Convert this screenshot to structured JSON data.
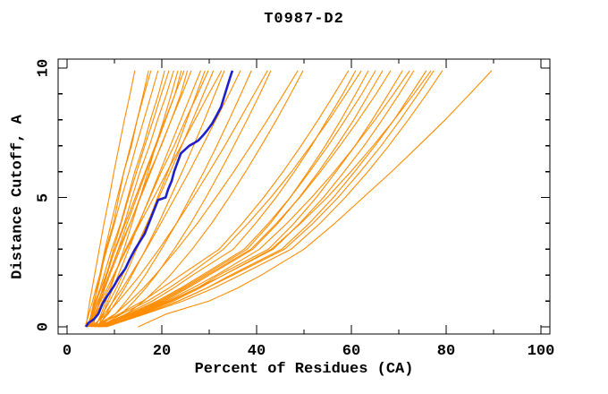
{
  "colors": {
    "background": "#ffffff",
    "frame": "#000000",
    "text": "#000000",
    "model_curves": "#ff8c00",
    "highlight_curve": "#1f1fc8"
  },
  "chart_data": {
    "type": "line",
    "title": "T0987-D2",
    "xlabel": "Percent of Residues (CA)",
    "ylabel": "Distance Cutoff, A",
    "xlim": [
      0,
      100
    ],
    "ylim": [
      0,
      10
    ],
    "x_major_ticks": [
      0,
      20,
      40,
      60,
      80,
      100
    ],
    "x_minor_ticks": [
      10,
      30,
      50,
      70,
      90
    ],
    "y_major_ticks": [
      0,
      5,
      10
    ],
    "y_minor_ticks": [
      1,
      2,
      3,
      4,
      6,
      7,
      8,
      9
    ],
    "grid": false,
    "legend": false,
    "series_note": "orange = submitted model curves, blue = highlighted model",
    "y_levels": [
      0,
      0.5,
      1,
      1.5,
      2,
      3,
      4,
      5,
      6,
      7,
      8,
      9,
      9.9
    ],
    "model_curves_x": [
      [
        4.0,
        4.4,
        4.8,
        5.3,
        5.8,
        6.8,
        7.8,
        8.9,
        9.9,
        11.0,
        12.1,
        13.3,
        14.3
      ],
      [
        4.5,
        5.1,
        5.7,
        6.5,
        7.1,
        8.2,
        9.8,
        10.9,
        12.0,
        13.6,
        14.8,
        16.1,
        17.2
      ],
      [
        5.0,
        5.4,
        5.8,
        6.3,
        6.9,
        8.0,
        9.3,
        10.6,
        12.0,
        13.4,
        14.8,
        16.3,
        17.7
      ],
      [
        3.8,
        4.6,
        5.4,
        6.1,
        6.9,
        8.4,
        10.0,
        11.5,
        13.1,
        14.6,
        16.2,
        17.8,
        19.2
      ],
      [
        4.2,
        5.2,
        6.0,
        7.0,
        7.8,
        9.4,
        11.3,
        12.8,
        14.3,
        16.1,
        17.6,
        19.3,
        20.6
      ],
      [
        5.5,
        6.1,
        6.8,
        7.5,
        8.3,
        9.8,
        11.4,
        13.0,
        14.7,
        16.4,
        18.2,
        19.9,
        21.5
      ],
      [
        4.8,
        5.6,
        6.6,
        7.6,
        8.4,
        10.1,
        12.1,
        13.7,
        15.4,
        17.4,
        19.1,
        21.0,
        22.5
      ],
      [
        6.0,
        7.2,
        8.2,
        9.2,
        10.1,
        12.0,
        13.7,
        15.4,
        17.1,
        18.7,
        20.4,
        22.0,
        23.4
      ],
      [
        4.3,
        5.3,
        6.2,
        7.2,
        8.2,
        10.2,
        12.3,
        14.4,
        16.5,
        18.6,
        20.7,
        22.8,
        24.1
      ],
      [
        5.2,
        6.0,
        7.0,
        7.9,
        8.8,
        10.8,
        12.7,
        14.7,
        16.7,
        18.8,
        20.8,
        22.8,
        24.7
      ],
      [
        5.1,
        6.0,
        7.0,
        8.0,
        9.0,
        11.2,
        13.3,
        15.5,
        17.7,
        19.8,
        22.0,
        24.0,
        25.4
      ],
      [
        4.4,
        5.5,
        6.5,
        7.8,
        8.8,
        10.9,
        13.3,
        15.4,
        17.5,
        19.9,
        22.0,
        24.3,
        26.2
      ],
      [
        6.6,
        7.6,
        8.6,
        9.7,
        10.8,
        13.0,
        15.2,
        17.4,
        19.6,
        21.8,
        24.0,
        26.2,
        28.2
      ],
      [
        6.5,
        8.3,
        9.7,
        11.0,
        12.3,
        14.7,
        17.0,
        19.1,
        21.3,
        23.3,
        25.3,
        27.3,
        29.1
      ],
      [
        5.0,
        6.2,
        7.5,
        8.9,
        10.0,
        12.4,
        15.1,
        17.5,
        19.9,
        22.6,
        25.0,
        27.6,
        29.8
      ],
      [
        5.8,
        7.5,
        9.0,
        10.4,
        11.7,
        14.4,
        16.9,
        19.4,
        21.8,
        24.2,
        26.5,
        28.8,
        30.9
      ],
      [
        4.6,
        5.8,
        7.1,
        8.5,
        9.8,
        12.6,
        15.4,
        18.3,
        21.1,
        24.1,
        27.0,
        29.9,
        32.6
      ],
      [
        6.2,
        8.7,
        10.5,
        12.2,
        13.7,
        16.6,
        19.3,
        21.8,
        24.3,
        26.7,
        29.0,
        31.2,
        33.2
      ],
      [
        5.4,
        7.9,
        9.8,
        11.7,
        13.4,
        16.7,
        19.8,
        22.8,
        25.8,
        28.6,
        31.4,
        34.2,
        36.6
      ],
      [
        6.8,
        10.2,
        12.5,
        14.6,
        16.5,
        19.9,
        23.1,
        26.0,
        28.9,
        31.6,
        34.2,
        36.7,
        38.9
      ],
      [
        5.0,
        8.4,
        10.9,
        13.2,
        15.4,
        19.4,
        23.1,
        26.6,
        30.0,
        33.3,
        36.4,
        39.5,
        42.3
      ],
      [
        7.0,
        11.5,
        14.2,
        16.6,
        18.8,
        22.6,
        26.1,
        29.3,
        32.3,
        35.2,
        38.0,
        40.7,
        43.0
      ],
      [
        5.6,
        10.2,
        13.3,
        16.1,
        18.6,
        23.2,
        27.5,
        31.4,
        35.2,
        38.8,
        42.3,
        45.7,
        48.7
      ],
      [
        6.4,
        12.6,
        16.2,
        19.1,
        21.8,
        26.4,
        30.5,
        34.2,
        37.7,
        41.0,
        44.2,
        47.2,
        49.8
      ],
      [
        6.0,
        11.0,
        16.0,
        20.0,
        24.0,
        32.1,
        37.0,
        41.5,
        45.6,
        49.4,
        53.0,
        56.4,
        59.4
      ],
      [
        7.2,
        12.5,
        18.0,
        22.5,
        26.5,
        35.1,
        39.8,
        44.1,
        48.0,
        51.6,
        54.9,
        58.2,
        60.9
      ],
      [
        5.2,
        11.5,
        17.0,
        21.5,
        25.5,
        33.0,
        38.2,
        43.0,
        47.4,
        51.4,
        55.3,
        58.9,
        62.1
      ],
      [
        6.6,
        13.5,
        19.5,
        24.5,
        29.0,
        38.0,
        42.9,
        47.1,
        50.9,
        54.5,
        57.8,
        60.9,
        63.6
      ],
      [
        7.5,
        13.0,
        19.0,
        24.0,
        28.5,
        37.4,
        42.5,
        47.1,
        51.2,
        55.1,
        58.7,
        62.2,
        65.1
      ],
      [
        5.8,
        14.0,
        20.5,
        25.5,
        30.0,
        39.2,
        44.5,
        49.0,
        53.1,
        56.9,
        60.5,
        63.7,
        66.6
      ],
      [
        6.9,
        13.5,
        20.0,
        25.0,
        29.5,
        38.8,
        44.2,
        49.1,
        53.5,
        57.6,
        61.5,
        65.2,
        68.3
      ],
      [
        7.8,
        15.0,
        22.0,
        27.5,
        32.0,
        42.5,
        47.9,
        52.6,
        56.8,
        60.8,
        64.4,
        67.8,
        70.8
      ],
      [
        6.3,
        14.0,
        21.0,
        26.5,
        31.5,
        40.6,
        46.4,
        51.6,
        56.4,
        60.8,
        65.0,
        68.9,
        72.3
      ],
      [
        7.1,
        15.5,
        22.5,
        28.0,
        33.0,
        43.5,
        49.1,
        54.1,
        58.5,
        62.7,
        66.5,
        70.1,
        73.2
      ],
      [
        8.0,
        16.0,
        23.5,
        29.5,
        34.5,
        45.3,
        51.1,
        56.2,
        60.7,
        65.0,
        69.0,
        72.6,
        75.8
      ],
      [
        6.7,
        14.5,
        21.5,
        27.5,
        33.0,
        43.1,
        49.3,
        54.9,
        59.9,
        64.6,
        69.0,
        73.2,
        76.8
      ],
      [
        7.4,
        16.0,
        23.5,
        29.5,
        35.0,
        45.9,
        51.9,
        57.2,
        61.9,
        66.3,
        70.3,
        74.1,
        77.4
      ],
      [
        8.3,
        16.5,
        24.5,
        31.0,
        36.5,
        47.3,
        53.4,
        58.7,
        63.5,
        67.9,
        72.0,
        75.9,
        79.2
      ],
      [
        15.0,
        21.0,
        30.0,
        36.0,
        41.0,
        50.0,
        56.5,
        62.5,
        68.5,
        74.2,
        79.8,
        85.0,
        89.6
      ]
    ],
    "highlight_curve_points": [
      [
        4.0,
        0.0
      ],
      [
        4.5,
        0.15
      ],
      [
        5.7,
        0.3
      ],
      [
        6.6,
        0.5
      ],
      [
        7.5,
        0.9
      ],
      [
        8.5,
        1.2
      ],
      [
        9.8,
        1.55
      ],
      [
        10.9,
        1.9
      ],
      [
        12.3,
        2.25
      ],
      [
        13.2,
        2.6
      ],
      [
        14.2,
        2.95
      ],
      [
        16.4,
        3.6
      ],
      [
        17.9,
        4.3
      ],
      [
        19.2,
        4.9
      ],
      [
        20.8,
        5.0
      ],
      [
        21.3,
        5.3
      ],
      [
        22.1,
        5.65
      ],
      [
        22.6,
        6.0
      ],
      [
        23.6,
        6.5
      ],
      [
        24.0,
        6.7
      ],
      [
        24.9,
        6.85
      ],
      [
        25.8,
        7.0
      ],
      [
        26.8,
        7.1
      ],
      [
        27.7,
        7.2
      ],
      [
        28.7,
        7.4
      ],
      [
        29.6,
        7.6
      ],
      [
        30.6,
        7.85
      ],
      [
        31.5,
        8.15
      ],
      [
        32.5,
        8.5
      ],
      [
        33.0,
        8.8
      ],
      [
        34.0,
        9.4
      ],
      [
        34.7,
        9.8
      ],
      [
        34.9,
        9.9
      ]
    ]
  }
}
